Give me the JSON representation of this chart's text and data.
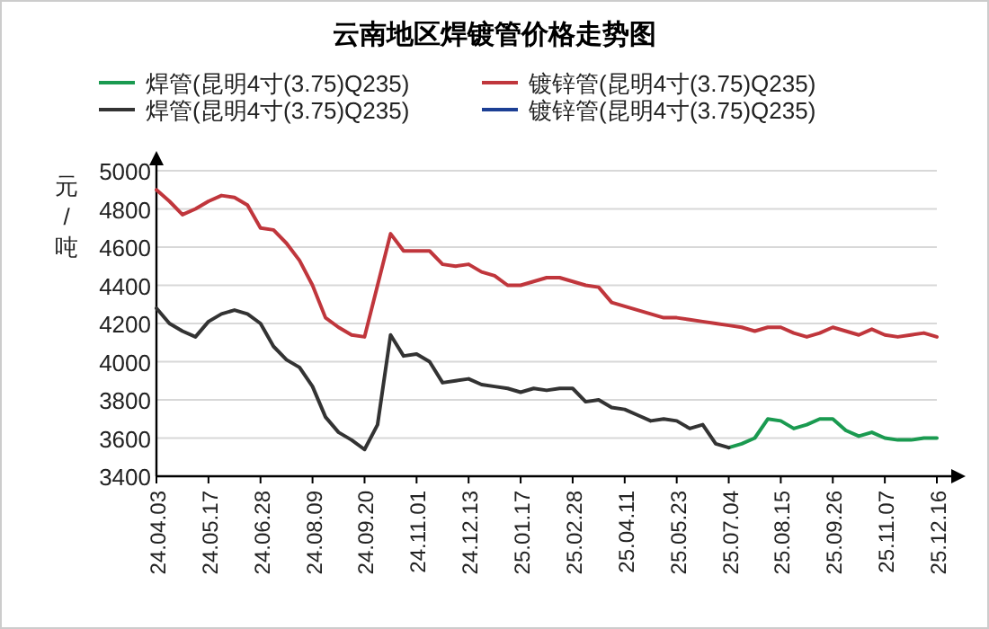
{
  "chart_data": {
    "type": "line",
    "title": "云南地区焊镀管价格走势图",
    "ylabel": "元/吨",
    "categories": [
      "24.04.03",
      null,
      null,
      null,
      "24.05.17",
      null,
      null,
      null,
      "24.06.28",
      null,
      null,
      null,
      "24.08.09",
      null,
      null,
      null,
      "24.09.20",
      null,
      null,
      null,
      "24.11.01",
      null,
      null,
      null,
      "24.12.13",
      null,
      null,
      null,
      "25.01.17",
      null,
      null,
      null,
      "25.02.28",
      null,
      null,
      null,
      "25.04.11",
      null,
      null,
      null,
      "25.05.23",
      null,
      null,
      null,
      "25.07.04",
      null,
      null,
      null,
      "25.08.15",
      null,
      null,
      null,
      "25.09.26",
      null,
      null,
      null,
      "25.11.07",
      null,
      null,
      null,
      "25.12.16"
    ],
    "ylim": [
      3400,
      5000
    ],
    "yticks": [
      3400,
      3600,
      3800,
      4000,
      4200,
      4400,
      4600,
      4800,
      5000
    ],
    "grid": "y",
    "legend": "top",
    "marker": "none",
    "line_style": "solid",
    "series": [
      {
        "name": "焊管(昆明4寸(3.75)Q235)",
        "color": "#1a9a50",
        "values": [
          null,
          null,
          null,
          null,
          null,
          null,
          null,
          null,
          null,
          null,
          null,
          null,
          null,
          null,
          null,
          null,
          null,
          null,
          null,
          null,
          null,
          null,
          null,
          null,
          null,
          null,
          null,
          null,
          null,
          null,
          null,
          null,
          null,
          null,
          null,
          null,
          null,
          null,
          null,
          null,
          null,
          null,
          null,
          null,
          3550,
          3570,
          3600,
          3700,
          3690,
          3650,
          3670,
          3700,
          3700,
          3640,
          3610,
          3630,
          3600,
          3590,
          3590,
          3600,
          3600
        ]
      },
      {
        "name": "镀锌管(昆明4寸(3.75)Q235)",
        "color": "#c0363c",
        "values": [
          4900,
          4840,
          4770,
          4800,
          4840,
          4870,
          4860,
          4820,
          4700,
          4690,
          4620,
          4530,
          4400,
          4230,
          4180,
          4140,
          4130,
          4400,
          4670,
          4580,
          4580,
          4580,
          4510,
          4500,
          4510,
          4470,
          4450,
          4400,
          4400,
          4420,
          4440,
          4440,
          4420,
          4400,
          4390,
          4310,
          4290,
          4270,
          4250,
          4230,
          4230,
          4220,
          4210,
          4200,
          4190,
          4180,
          4160,
          4180,
          4180,
          4150,
          4130,
          4150,
          4180,
          4160,
          4140,
          4170,
          4140,
          4130,
          4140,
          4150,
          4130
        ]
      },
      {
        "name": "焊管(昆明4寸(3.75)Q235)",
        "color": "#333333",
        "values": [
          4280,
          4200,
          4160,
          4130,
          4210,
          4250,
          4270,
          4250,
          4200,
          4080,
          4010,
          3970,
          3870,
          3710,
          3630,
          3590,
          3540,
          3670,
          4140,
          4030,
          4040,
          4000,
          3890,
          3900,
          3910,
          3880,
          3870,
          3860,
          3840,
          3860,
          3850,
          3860,
          3860,
          3790,
          3800,
          3760,
          3750,
          3720,
          3690,
          3700,
          3690,
          3650,
          3670,
          3570,
          3550,
          null,
          null,
          null,
          null,
          null,
          null,
          null,
          null,
          null,
          null,
          null,
          null,
          null,
          null,
          null,
          null
        ]
      },
      {
        "name": "镀锌管(昆明4寸(3.75)Q235)",
        "color": "#1c3f94",
        "values": [
          null,
          null,
          null,
          null,
          null,
          null,
          null,
          null,
          null,
          null,
          null,
          null,
          null,
          null,
          null,
          null,
          null,
          null,
          null,
          null,
          null,
          null,
          null,
          null,
          null,
          null,
          null,
          null,
          null,
          null,
          null,
          null,
          null,
          null,
          null,
          null,
          null,
          null,
          null,
          null,
          null,
          null,
          null,
          null,
          null,
          null,
          null,
          null,
          null,
          null,
          null,
          null,
          null,
          null,
          null,
          null,
          null,
          null,
          null,
          null,
          null
        ]
      }
    ]
  }
}
